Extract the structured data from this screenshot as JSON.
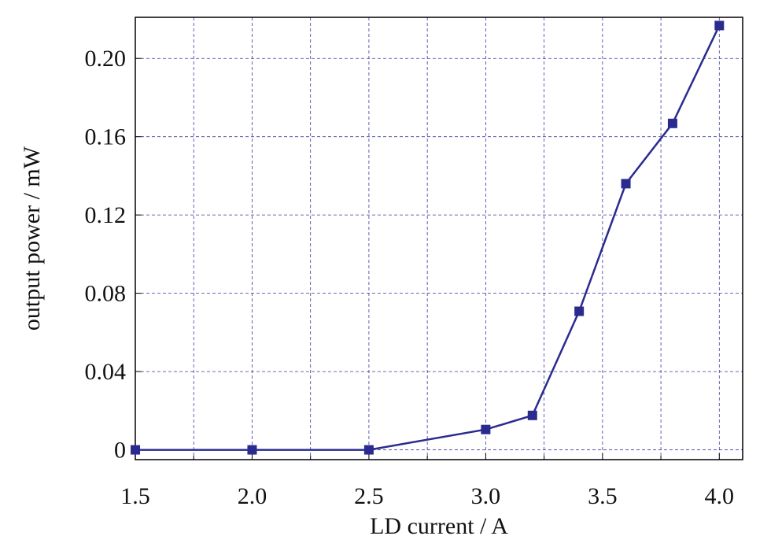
{
  "chart_data": {
    "type": "line",
    "x_label": "LD current / A",
    "y_label": "output power / mW",
    "x": [
      1.5,
      2.0,
      2.5,
      3.0,
      3.2,
      3.4,
      3.6,
      3.8,
      4.0
    ],
    "series": [
      {
        "color": "#2b2b8f",
        "values": [
          0,
          0,
          0,
          0.0104,
          0.0176,
          0.0708,
          0.136,
          0.1668,
          0.2168
        ]
      }
    ],
    "xlim": [
      1.5,
      4.1
    ],
    "ylim": [
      -0.005,
      0.221
    ],
    "xticks": [
      1.5,
      {
        "value": 2,
        "label": "2.0"
      },
      2.5,
      {
        "value": 3,
        "label": "3.0"
      },
      3.5,
      {
        "value": 4,
        "label": "4.0"
      }
    ],
    "xminorticks": [
      1.75,
      2.25,
      2.75,
      3.25,
      3.75
    ],
    "yticks": [
      0,
      0.04,
      0.08,
      0.12,
      0.16,
      {
        "value": 0.2,
        "label": "0.20"
      }
    ],
    "grid": true
  }
}
